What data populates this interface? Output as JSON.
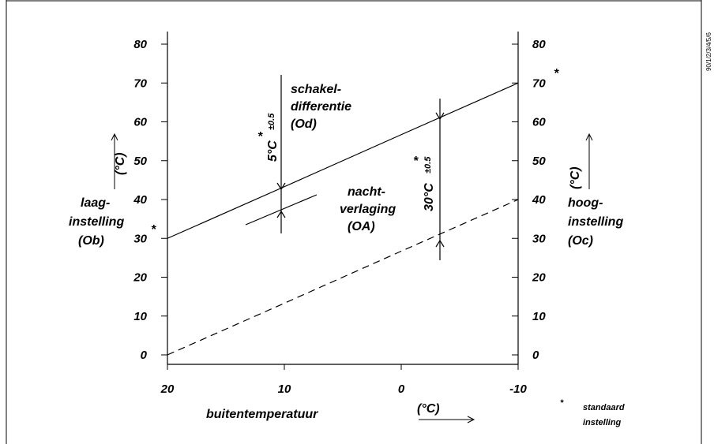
{
  "chart_data": {
    "type": "line",
    "x": [
      20,
      10,
      0,
      -10
    ],
    "xlim": [
      20,
      -10
    ],
    "ylim": [
      0,
      80
    ],
    "x_ticks": [
      "20",
      "10",
      "0",
      "-10"
    ],
    "y_ticks": [
      "0",
      "10",
      "20",
      "30",
      "40",
      "50",
      "60",
      "70",
      "80"
    ],
    "series": [
      {
        "style": "solid",
        "values": [
          30,
          43.3,
          56.7,
          70
        ]
      },
      {
        "style": "dashed",
        "values": [
          0,
          13.3,
          26.7,
          40
        ]
      }
    ],
    "xlabel": "buitentemperatuur",
    "xunit": "(°C)",
    "left_unit": "(°C)",
    "right_unit": "(°C)",
    "left_label": [
      "laag-",
      "instelling",
      "(Ob)"
    ],
    "right_label": [
      "hoog-",
      "instelling",
      "(Oc)"
    ],
    "annotation_od": [
      "schakel-",
      "differentie",
      "(Od)"
    ],
    "annotation_oa": [
      "nacht-",
      "verlaging",
      "(OA)"
    ],
    "dim_od": {
      "main": "5°C",
      "tol": "±0.5",
      "star": "*"
    },
    "dim_oa": {
      "main": "30°C",
      "tol": "±0.5",
      "star": "*"
    },
    "star_left": "*",
    "star_right": "*",
    "footnote": {
      "star": "*",
      "lines": [
        "standaard",
        "instelling"
      ]
    },
    "side_code": "90/1/2/3/4/5/6"
  }
}
